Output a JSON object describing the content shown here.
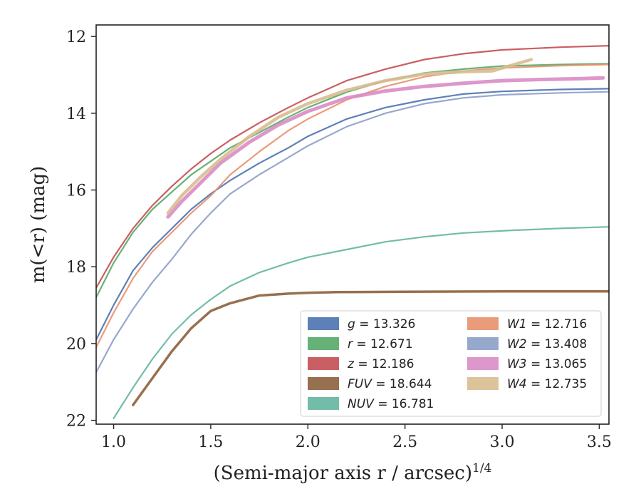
{
  "chart_data": {
    "type": "line",
    "xlabel": "(Semi-major axis r / arcsec)",
    "xlabel_exponent": "1/4",
    "ylabel": "m(<r) (mag)",
    "xlim": [
      0.91,
      3.55
    ],
    "ylim": [
      22.1,
      11.7
    ],
    "y_inverted": true,
    "x_ticks": [
      1.0,
      1.5,
      2.0,
      2.5,
      3.0,
      3.5
    ],
    "x_tick_labels": [
      "1.0",
      "1.5",
      "2.0",
      "2.5",
      "3.0",
      "3.5"
    ],
    "y_ticks": [
      12,
      14,
      16,
      18,
      20,
      22
    ],
    "y_tick_labels": [
      "12",
      "14",
      "16",
      "18",
      "20",
      "22"
    ],
    "grid": false,
    "legend_position": "lower-right",
    "legend_columns": 2,
    "series": [
      {
        "name": "g = 13.326",
        "color": "#4c72b0",
        "band": "g",
        "mag": 13.326,
        "x": [
          0.91,
          1.0,
          1.1,
          1.2,
          1.3,
          1.4,
          1.5,
          1.6,
          1.75,
          1.9,
          2.0,
          2.2,
          2.4,
          2.6,
          2.8,
          3.0,
          3.3,
          3.55
        ],
        "y": [
          19.9,
          19.0,
          18.1,
          17.5,
          17.0,
          16.5,
          16.1,
          15.75,
          15.3,
          14.9,
          14.6,
          14.15,
          13.85,
          13.65,
          13.5,
          13.43,
          13.38,
          13.36
        ]
      },
      {
        "name": "r = 12.671",
        "color": "#55a868",
        "band": "r",
        "mag": 12.671,
        "x": [
          0.91,
          1.0,
          1.1,
          1.2,
          1.3,
          1.4,
          1.5,
          1.6,
          1.75,
          1.9,
          2.0,
          2.2,
          2.4,
          2.6,
          2.8,
          3.0,
          3.3,
          3.55
        ],
        "y": [
          18.8,
          17.9,
          17.1,
          16.5,
          16.05,
          15.6,
          15.25,
          14.9,
          14.5,
          14.1,
          13.85,
          13.45,
          13.15,
          12.95,
          12.85,
          12.77,
          12.73,
          12.71
        ]
      },
      {
        "name": "z = 12.186",
        "color": "#c44e52",
        "band": "z",
        "mag": 12.186,
        "x": [
          0.91,
          1.0,
          1.1,
          1.2,
          1.3,
          1.4,
          1.5,
          1.6,
          1.75,
          1.9,
          2.0,
          2.2,
          2.4,
          2.6,
          2.8,
          3.0,
          3.3,
          3.55
        ],
        "y": [
          18.55,
          17.75,
          17.0,
          16.4,
          15.9,
          15.45,
          15.05,
          14.7,
          14.25,
          13.85,
          13.6,
          13.15,
          12.85,
          12.6,
          12.45,
          12.35,
          12.28,
          12.24
        ]
      },
      {
        "name": "FUV = 18.644",
        "color": "#8c613c",
        "band": "FUV",
        "mag": 18.644,
        "x": [
          1.1,
          1.2,
          1.3,
          1.4,
          1.5,
          1.6,
          1.75,
          1.9,
          2.0,
          2.15,
          2.5,
          3.0,
          3.55
        ],
        "y": [
          21.6,
          20.9,
          20.2,
          19.6,
          19.15,
          18.95,
          18.75,
          18.7,
          18.68,
          18.66,
          18.65,
          18.64,
          18.64
        ]
      },
      {
        "name": "NUV = 16.781",
        "color": "#64b5a0",
        "band": "NUV",
        "mag": 16.781,
        "x": [
          1.0,
          1.1,
          1.2,
          1.3,
          1.4,
          1.5,
          1.6,
          1.75,
          1.9,
          2.0,
          2.2,
          2.4,
          2.6,
          2.8,
          3.05,
          3.3,
          3.55
        ],
        "y": [
          21.95,
          21.15,
          20.4,
          19.75,
          19.25,
          18.85,
          18.5,
          18.15,
          17.9,
          17.75,
          17.55,
          17.35,
          17.22,
          17.12,
          17.05,
          17.0,
          16.96
        ]
      },
      {
        "name": "W1 = 12.716",
        "color": "#e8916b",
        "band": "W1",
        "mag": 12.716,
        "x": [
          0.91,
          1.0,
          1.1,
          1.2,
          1.3,
          1.4,
          1.5,
          1.6,
          1.75,
          1.9,
          2.0,
          2.2,
          2.4,
          2.6,
          2.8,
          3.0,
          3.3,
          3.55
        ],
        "y": [
          20.1,
          19.2,
          18.3,
          17.6,
          17.1,
          16.6,
          16.15,
          15.6,
          15.0,
          14.45,
          14.15,
          13.65,
          13.3,
          13.05,
          12.9,
          12.82,
          12.76,
          12.73
        ]
      },
      {
        "name": "W2 = 13.408",
        "color": "#8c9fc8",
        "band": "W2",
        "mag": 13.408,
        "x": [
          0.91,
          1.0,
          1.1,
          1.2,
          1.3,
          1.4,
          1.5,
          1.6,
          1.75,
          1.9,
          2.0,
          2.2,
          2.4,
          2.6,
          2.8,
          3.0,
          3.3,
          3.55
        ],
        "y": [
          20.75,
          19.9,
          19.1,
          18.4,
          17.8,
          17.15,
          16.6,
          16.1,
          15.6,
          15.15,
          14.85,
          14.35,
          14.0,
          13.75,
          13.6,
          13.52,
          13.47,
          13.44
        ]
      },
      {
        "name": "W3 = 13.065",
        "color": "#d98cc4",
        "band": "W3",
        "mag": 13.065,
        "x": [
          1.28,
          1.35,
          1.45,
          1.55,
          1.7,
          1.85,
          2.0,
          2.2,
          2.4,
          2.6,
          2.8,
          3.0,
          3.2,
          3.4,
          3.52
        ],
        "y": [
          16.7,
          16.3,
          15.8,
          15.3,
          14.75,
          14.3,
          13.95,
          13.6,
          13.42,
          13.3,
          13.22,
          13.15,
          13.12,
          13.1,
          13.08
        ]
      },
      {
        "name": "W4 = 12.735",
        "color": "#d8bc8f",
        "band": "W4",
        "mag": 12.735,
        "x": [
          1.28,
          1.35,
          1.45,
          1.55,
          1.7,
          1.85,
          2.0,
          2.2,
          2.4,
          2.6,
          2.8,
          2.95,
          3.05,
          3.15
        ],
        "y": [
          16.6,
          16.15,
          15.65,
          15.2,
          14.6,
          14.1,
          13.75,
          13.4,
          13.15,
          12.98,
          12.92,
          12.9,
          12.75,
          12.6
        ]
      }
    ]
  }
}
